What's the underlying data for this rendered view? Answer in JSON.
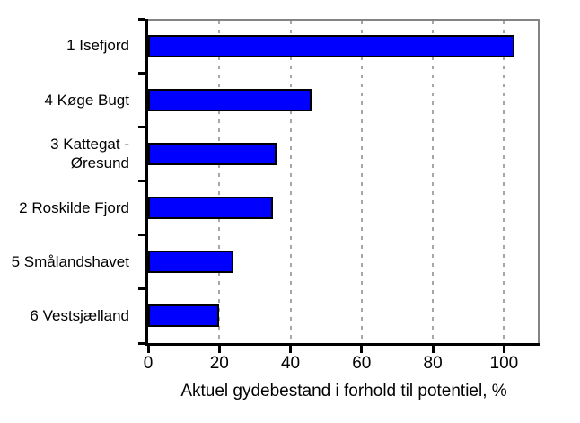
{
  "chart_data": {
    "type": "bar",
    "orientation": "horizontal",
    "categories": [
      "1 Isefjord",
      "4 Køge Bugt",
      "3 Kattegat -\nØresund",
      "2 Roskilde Fjord",
      "5 Smålandshavet",
      "6  Vestsjælland"
    ],
    "values": [
      103,
      46,
      36,
      35,
      24,
      20
    ],
    "title": "",
    "xlabel": "Aktuel gydebestand i forhold til potentiel, %",
    "ylabel": "",
    "x_ticks": [
      0,
      20,
      40,
      60,
      80,
      100
    ],
    "x_tick_labels": [
      "0",
      "20",
      "40",
      "60",
      "80",
      "100"
    ],
    "xlim": [
      0,
      110
    ],
    "grid": "vertical-dashed",
    "legend": "none",
    "colors": {
      "bar_fill": "#0000ff",
      "bar_border": "#000000",
      "axis": "#000000",
      "frame": "#848484",
      "gridline": "#a6a6a6",
      "text": "#000000",
      "background": "#ffffff"
    }
  }
}
